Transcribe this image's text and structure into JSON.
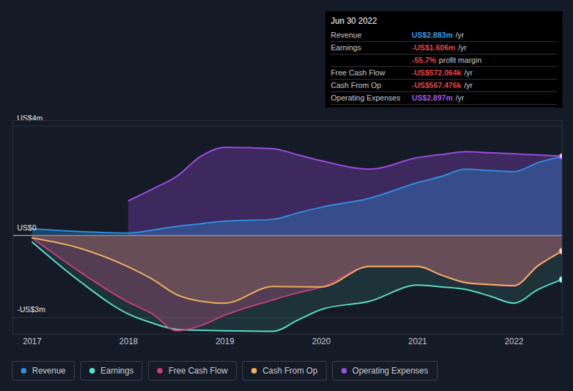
{
  "chart_data": {
    "type": "line",
    "x": [
      2017,
      2017.5,
      2018,
      2018.25,
      2018.5,
      2018.75,
      2019,
      2019.5,
      2019.75,
      2020,
      2020.5,
      2021,
      2021.25,
      2021.5,
      2021.75,
      2022,
      2022.25,
      2022.5
    ],
    "xlim": [
      2016.8,
      2022.5
    ],
    "xticks": [
      2017,
      2018,
      2019,
      2020,
      2021,
      2022
    ],
    "ylim": [
      -3.6,
      4.2
    ],
    "yticks": [
      {
        "value": 4,
        "label": "US$4m"
      },
      {
        "value": 0,
        "label": "US$0"
      },
      {
        "value": -3,
        "label": "-US$3m"
      }
    ],
    "grid": true,
    "series": [
      {
        "name": "Revenue",
        "color": "#2e8fe0",
        "values": [
          0.24,
          0.14,
          0.09,
          0.2,
          0.33,
          0.43,
          0.52,
          0.59,
          0.82,
          1.03,
          1.36,
          1.93,
          2.16,
          2.42,
          2.37,
          2.33,
          2.66,
          2.883
        ]
      },
      {
        "name": "Earnings",
        "color": "#5ce0c8",
        "values": [
          -0.24,
          -1.69,
          -2.87,
          -3.2,
          -3.43,
          -3.46,
          -3.48,
          -3.5,
          -3.1,
          -2.7,
          -2.4,
          -1.81,
          -1.88,
          -1.97,
          -2.21,
          -2.47,
          -1.97,
          -1.606
        ]
      },
      {
        "name": "Free Cash Flow",
        "color": "#c73f7a",
        "values": [
          -0.09,
          -1.34,
          -2.44,
          -2.87,
          -3.48,
          -3.29,
          -2.91,
          -2.35,
          -2.1,
          -1.89,
          -1.14,
          -1.14,
          -1.45,
          -1.73,
          -1.8,
          -1.84,
          -1.11,
          -0.572
        ]
      },
      {
        "name": "Cash From Op",
        "color": "#f0b060",
        "values": [
          -0.09,
          -0.47,
          -1.15,
          -1.6,
          -2.16,
          -2.4,
          -2.47,
          -1.86,
          -1.87,
          -1.88,
          -1.13,
          -1.13,
          -1.45,
          -1.72,
          -1.79,
          -1.83,
          -1.1,
          -0.567
        ]
      },
      {
        "name": "Operating Expenses",
        "color": "#9b4de0",
        "values": [
          null,
          null,
          1.27,
          1.7,
          2.16,
          2.89,
          3.22,
          3.17,
          2.95,
          2.73,
          2.42,
          2.84,
          2.96,
          3.06,
          3.02,
          2.98,
          2.94,
          2.897
        ]
      }
    ],
    "tooltip": {
      "title": "Jun 30 2022",
      "rows": [
        {
          "label": "Revenue",
          "value": "US$2.883m",
          "unit": "/yr",
          "color": "#3b9be8"
        },
        {
          "label": "Earnings",
          "value": "-US$1.606m",
          "unit": "/yr",
          "color": "#e0454a"
        },
        {
          "label": "",
          "value": "-55.7%",
          "unit": "profit margin",
          "color": "#e0454a"
        },
        {
          "label": "Free Cash Flow",
          "value": "-US$572.064k",
          "unit": "/yr",
          "color": "#e0454a"
        },
        {
          "label": "Cash From Op",
          "value": "-US$567.476k",
          "unit": "/yr",
          "color": "#e0454a"
        },
        {
          "label": "Operating Expenses",
          "value": "US$2.897m",
          "unit": "/yr",
          "color": "#a25be8"
        }
      ]
    }
  }
}
